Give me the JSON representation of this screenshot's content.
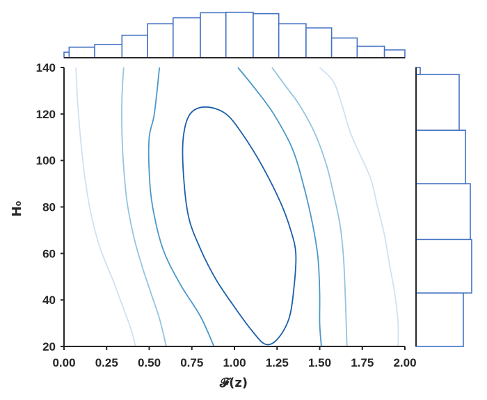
{
  "chart_data": {
    "type": "contour",
    "xlabel": "𝓕(z)",
    "ylabel": "H₀",
    "xlim": [
      0.0,
      2.0
    ],
    "ylim": [
      20,
      140
    ],
    "xticks": [
      "0.00",
      "0.25",
      "0.50",
      "0.75",
      "1.00",
      "1.25",
      "1.50",
      "1.75",
      "2.00"
    ],
    "yticks": [
      "20",
      "40",
      "60",
      "80",
      "100",
      "120",
      "140"
    ],
    "grid": false,
    "contour_levels": [
      {
        "level": 1,
        "color": "#d0e1f2",
        "x": [
          0.07,
          0.08,
          0.11,
          0.15,
          0.2,
          0.25,
          0.29,
          0.33,
          0.39,
          0.42
        ],
        "y": [
          140,
          125,
          100,
          80,
          65,
          55,
          48,
          40,
          28,
          20
        ]
      },
      {
        "level": 1,
        "color": "#d0e1f2",
        "x": [
          1.5,
          1.58,
          1.63,
          1.68,
          1.74,
          1.8,
          1.84,
          1.88,
          1.91,
          1.94,
          1.96,
          1.96
        ],
        "y": [
          140,
          134,
          124,
          112,
          102,
          92,
          80,
          68,
          55,
          43,
          30,
          20
        ]
      },
      {
        "level": 2,
        "color": "#94c4df",
        "x": [
          0.35,
          0.34,
          0.34,
          0.35,
          0.37,
          0.41,
          0.46,
          0.51,
          0.56,
          0.6
        ],
        "y": [
          140,
          127,
          112,
          97,
          82,
          67,
          54,
          43,
          32,
          20
        ]
      },
      {
        "level": 2,
        "color": "#94c4df",
        "x": [
          1.22,
          1.3,
          1.38,
          1.47,
          1.54,
          1.58,
          1.62,
          1.64,
          1.65,
          1.66
        ],
        "y": [
          140,
          132,
          124,
          112,
          98,
          86,
          72,
          58,
          42,
          20
        ]
      },
      {
        "level": 3,
        "color": "#4b98ca",
        "x": [
          0.56,
          0.53,
          0.5,
          0.5,
          0.52,
          0.58,
          0.68,
          0.8,
          0.88
        ],
        "y": [
          140,
          120,
          110,
          95,
          80,
          62,
          47,
          33,
          20
        ]
      },
      {
        "level": 3,
        "color": "#4b98ca",
        "x": [
          1.02,
          1.12,
          1.23,
          1.34,
          1.41,
          1.46,
          1.49,
          1.5,
          1.5,
          1.51
        ],
        "y": [
          140,
          131,
          120,
          105,
          88,
          72,
          58,
          43,
          30,
          20
        ]
      },
      {
        "level": 4,
        "color": "#1c5fa8",
        "closed": true,
        "x": [
          0.83,
          0.95,
          1.05,
          1.16,
          1.27,
          1.33,
          1.36,
          1.35,
          1.32,
          1.25,
          1.18,
          1.1,
          0.99,
          0.89,
          0.8,
          0.73,
          0.7,
          0.7,
          0.74
        ],
        "y": [
          123,
          120,
          111,
          98,
          82,
          70,
          60,
          46,
          32,
          23,
          21,
          27,
          38,
          49,
          62,
          76,
          95,
          110,
          120
        ]
      }
    ],
    "marginal_x": {
      "bin_edges": [
        0.0,
        0.03,
        0.18,
        0.34,
        0.49,
        0.64,
        0.8,
        0.95,
        1.11,
        1.26,
        1.42,
        1.57,
        1.72,
        1.88,
        2.0
      ],
      "heights": [
        0.12,
        0.23,
        0.29,
        0.49,
        0.74,
        0.87,
        0.98,
        0.99,
        0.96,
        0.74,
        0.65,
        0.43,
        0.25,
        0.17
      ]
    },
    "marginal_y": {
      "bin_edges": [
        20,
        43,
        66,
        90,
        113,
        137,
        140
      ],
      "heights": [
        0.68,
        0.8,
        0.78,
        0.71,
        0.62,
        0.06
      ]
    }
  }
}
